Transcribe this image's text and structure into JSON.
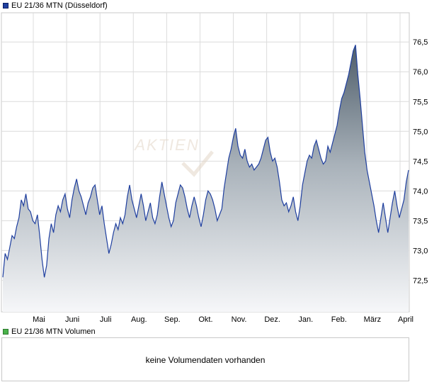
{
  "chart_data": {
    "type": "area",
    "title": "EU 21/36 MTN (Düsseldorf)",
    "x_tick_labels": [
      "Mai",
      "Juni",
      "Juli",
      "Aug.",
      "Sep.",
      "Okt.",
      "Nov.",
      "Dez.",
      "Jan.",
      "Feb.",
      "März",
      "April"
    ],
    "y_ticks": [
      72.5,
      73.0,
      73.5,
      74.0,
      74.5,
      75.0,
      75.5,
      76.0,
      76.5
    ],
    "y_tick_labels": [
      "72,5",
      "73,0",
      "73,5",
      "74,0",
      "74,5",
      "75,0",
      "75,5",
      "76,0",
      "76,5"
    ],
    "ylim": [
      71.97,
      76.99
    ],
    "grid": true,
    "legend": "top-left",
    "watermark": "AKTIEN",
    "series": [
      {
        "name": "EU 21/36 MTN (Düsseldorf)",
        "color": "#1f3f9f",
        "values": [
          72.55,
          72.95,
          72.85,
          73.05,
          73.25,
          73.2,
          73.4,
          73.55,
          73.85,
          73.75,
          73.95,
          73.7,
          73.65,
          73.5,
          73.45,
          73.6,
          73.25,
          72.85,
          72.55,
          72.75,
          73.2,
          73.45,
          73.3,
          73.6,
          73.75,
          73.65,
          73.85,
          73.95,
          73.7,
          73.55,
          73.85,
          74.05,
          74.2,
          74.0,
          73.9,
          73.75,
          73.6,
          73.8,
          73.9,
          74.05,
          74.1,
          73.85,
          73.6,
          73.75,
          73.45,
          73.2,
          72.95,
          73.1,
          73.3,
          73.45,
          73.35,
          73.55,
          73.45,
          73.6,
          73.9,
          74.1,
          73.85,
          73.7,
          73.55,
          73.75,
          73.95,
          73.75,
          73.5,
          73.65,
          73.8,
          73.55,
          73.45,
          73.6,
          73.9,
          74.15,
          73.95,
          73.75,
          73.55,
          73.4,
          73.5,
          73.8,
          73.95,
          74.1,
          74.05,
          73.9,
          73.7,
          73.55,
          73.75,
          73.9,
          73.75,
          73.55,
          73.4,
          73.6,
          73.85,
          74.0,
          73.95,
          73.85,
          73.7,
          73.5,
          73.6,
          73.7,
          74.05,
          74.3,
          74.55,
          74.7,
          74.9,
          75.05,
          74.75,
          74.6,
          74.55,
          74.7,
          74.5,
          74.4,
          74.45,
          74.35,
          74.4,
          74.45,
          74.55,
          74.7,
          74.85,
          74.9,
          74.65,
          74.5,
          74.55,
          74.4,
          74.15,
          73.85,
          73.75,
          73.8,
          73.65,
          73.75,
          73.9,
          73.65,
          73.5,
          73.75,
          74.1,
          74.3,
          74.5,
          74.6,
          74.55,
          74.75,
          74.85,
          74.7,
          74.55,
          74.45,
          74.5,
          74.75,
          74.65,
          74.8,
          74.95,
          75.1,
          75.35,
          75.55,
          75.65,
          75.8,
          75.95,
          76.15,
          76.35,
          76.45,
          75.95,
          75.55,
          75.1,
          74.65,
          74.35,
          74.15,
          73.95,
          73.75,
          73.5,
          73.3,
          73.55,
          73.8,
          73.55,
          73.3,
          73.55,
          73.8,
          74.0,
          73.75,
          73.55,
          73.7,
          73.85,
          74.15,
          74.35
        ]
      }
    ]
  },
  "price_legend": {
    "label": "EU 21/36 MTN (Düsseldorf)",
    "color": "#1f3f9f"
  },
  "volume_legend": {
    "label": "EU 21/36 MTN Volumen",
    "color": "#49b24a"
  },
  "volume_message": "keine Volumendaten vorhanden"
}
